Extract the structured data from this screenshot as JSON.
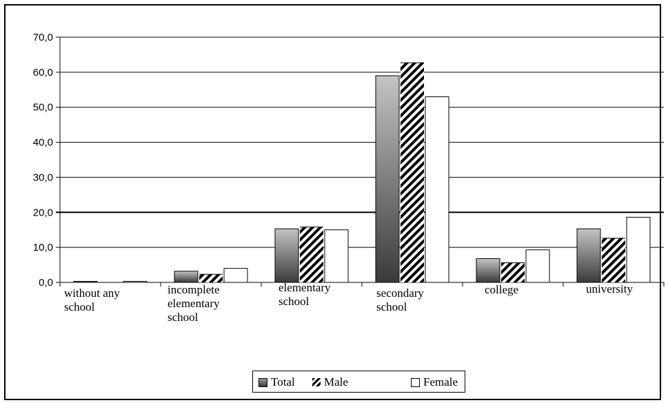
{
  "chart_data": {
    "type": "bar",
    "title": "",
    "xlabel": "",
    "ylabel": "",
    "ylim": [
      0,
      70
    ],
    "yticks": [
      "0,0",
      "10,0",
      "20,0",
      "30,0",
      "40,0",
      "50,0",
      "60,0",
      "70,0"
    ],
    "categories": [
      [
        "without any",
        "school"
      ],
      [
        "incomplete",
        "elementary",
        "school"
      ],
      [
        "elementary",
        "school"
      ],
      [
        "secondary",
        "school"
      ],
      [
        "college"
      ],
      [
        "university"
      ]
    ],
    "series": [
      {
        "name": "Total",
        "values": [
          0.3,
          3.2,
          15.3,
          59.0,
          6.8,
          15.3
        ],
        "color": "#6e6e6e"
      },
      {
        "name": "Male",
        "values": [
          0.0,
          2.3,
          15.8,
          62.7,
          5.6,
          12.6
        ],
        "color": "#000000"
      },
      {
        "name": "Female",
        "values": [
          0.3,
          4.0,
          15.0,
          53.0,
          9.3,
          18.6
        ],
        "color": "#ffffff"
      }
    ],
    "grid": true,
    "legend_position": "bottom"
  },
  "legend": {
    "total": "Total",
    "male": "Male",
    "female": "Female"
  }
}
